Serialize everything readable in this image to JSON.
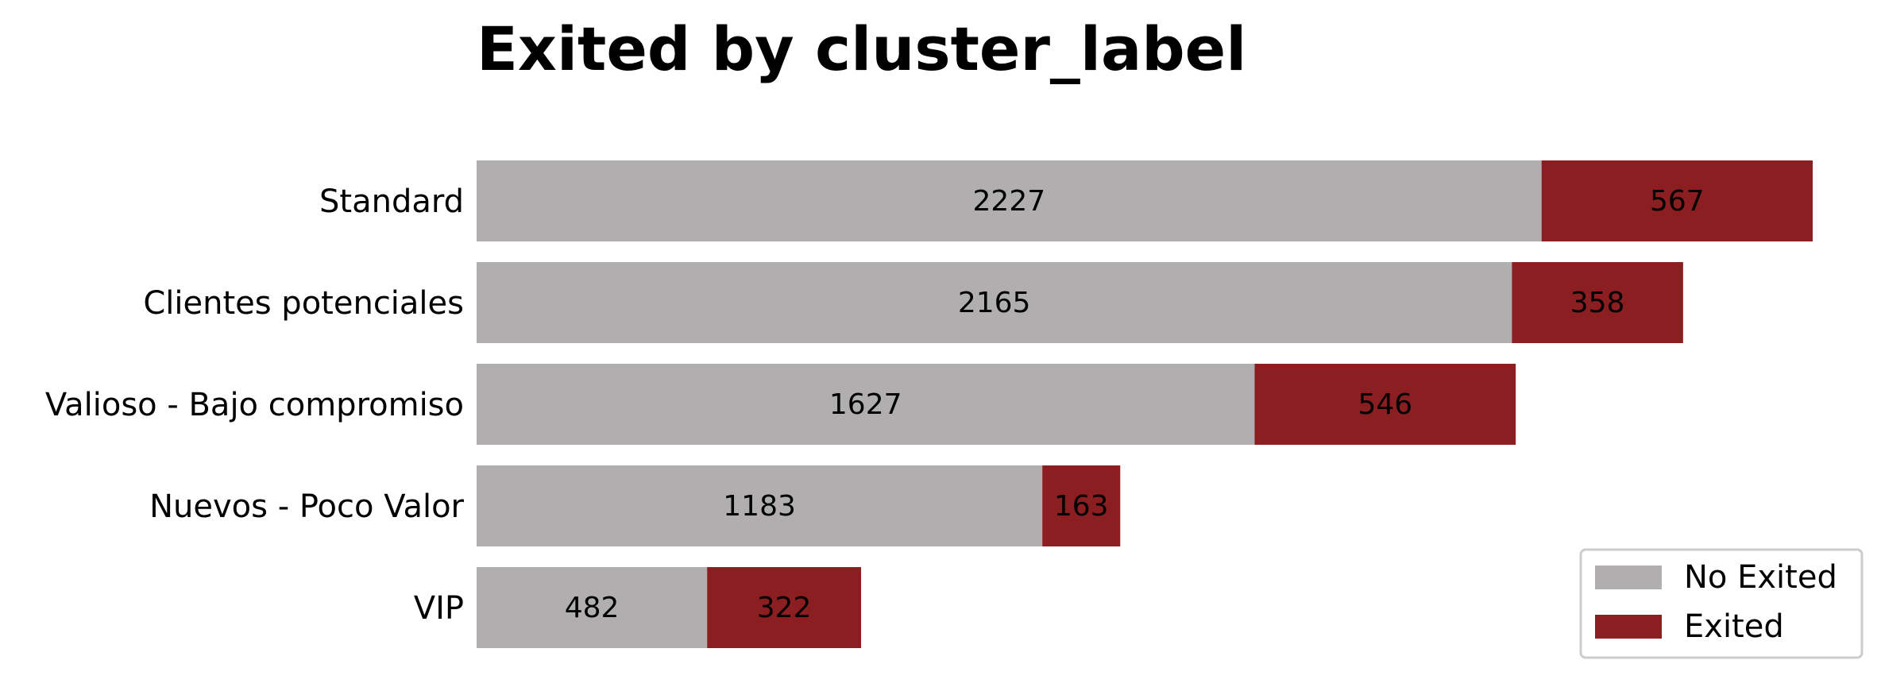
{
  "chart_data": {
    "type": "bar",
    "orientation": "horizontal",
    "stacked": true,
    "title": "Exited by cluster_label",
    "xlabel": "",
    "ylabel": "",
    "categories": [
      "Standard",
      "Clientes potenciales",
      "Valioso - Bajo compromiso",
      "Nuevos - Poco Valor",
      "VIP"
    ],
    "series": [
      {
        "name": "No Exited",
        "color": "#b0aeaf",
        "values": [
          2227,
          2165,
          1627,
          1183,
          482
        ]
      },
      {
        "name": "Exited",
        "color": "#8b1e20",
        "values": [
          567,
          358,
          546,
          163,
          322
        ]
      }
    ],
    "xlim": [
      0,
      2794
    ],
    "grid": false,
    "axes_visible": false,
    "data_labels": true,
    "legend_position": "lower-right"
  }
}
